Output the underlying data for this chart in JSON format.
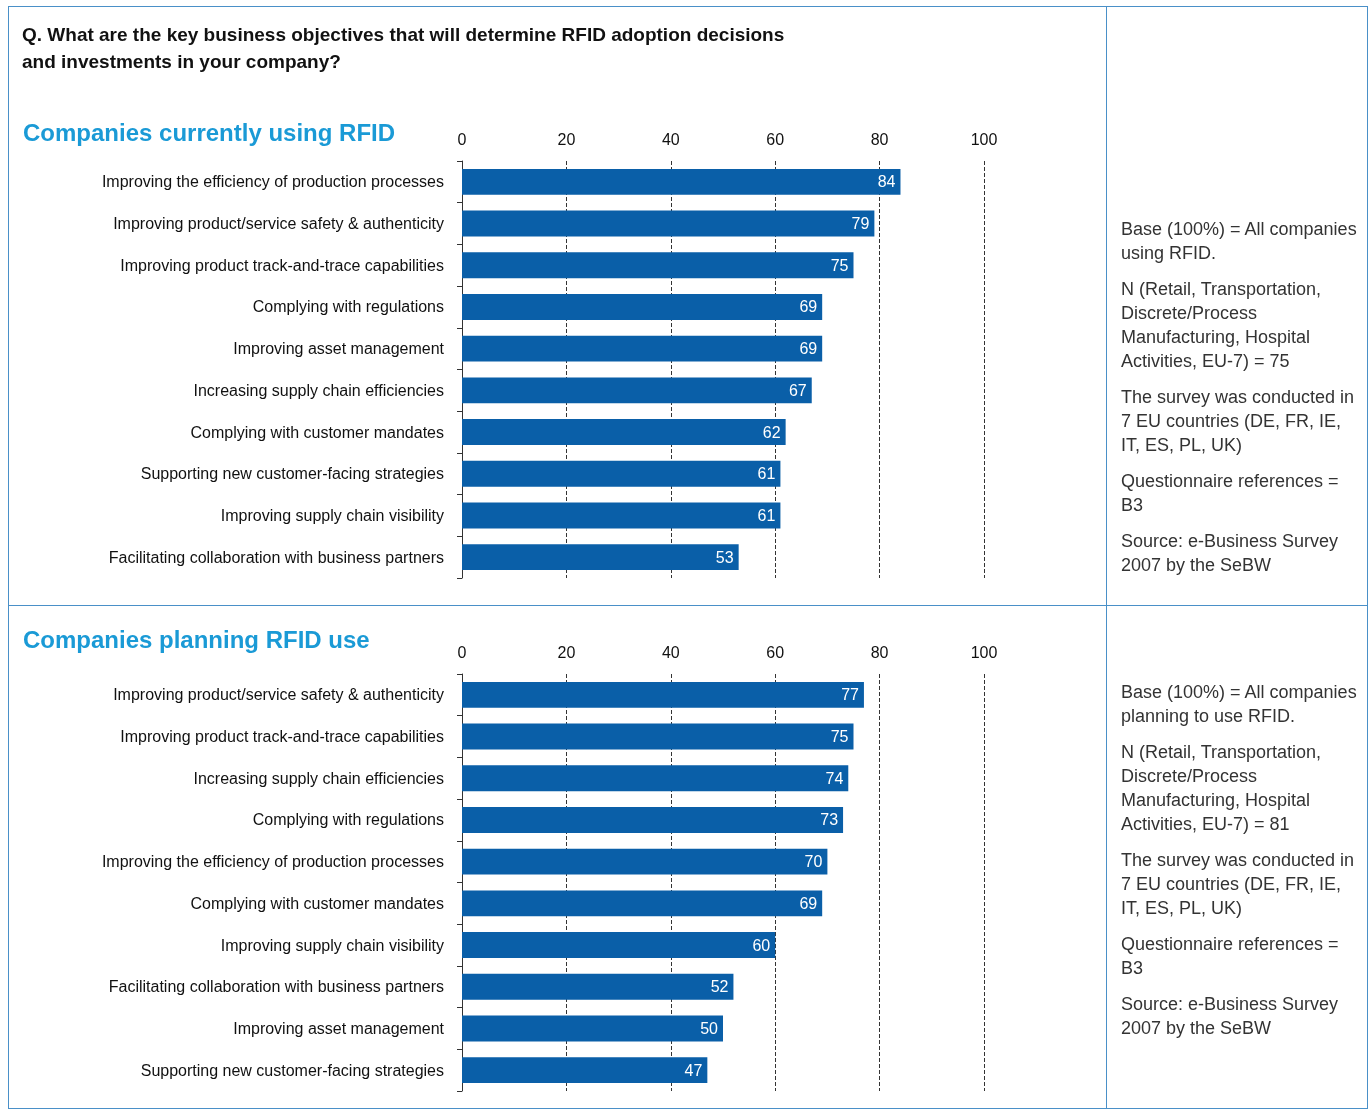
{
  "chart_data": [
    {
      "type": "bar",
      "orientation": "horizontal",
      "subtitle": "Q. What are the key business objectives that will determine RFID adoption decisions and investments in your company?",
      "title": "Companies currently using RFID",
      "categories": [
        "Improving the efficiency of production processes",
        "Improving product/service safety & authenticity",
        "Improving product track-and-trace capabilities",
        "Complying with regulations",
        "Improving asset management",
        "Increasing supply chain efficiencies",
        "Complying with customer mandates",
        "Supporting new customer-facing strategies",
        "Improving supply chain visibility",
        "Facilitating collaboration with business partners"
      ],
      "values": [
        84,
        79,
        75,
        69,
        69,
        67,
        62,
        61,
        61,
        53
      ],
      "color": "#0a5fa8",
      "data_labels": true,
      "xlim": [
        0,
        100
      ],
      "xticks": [
        0,
        20,
        40,
        60,
        80,
        100
      ],
      "grid": "x",
      "annotations": [
        "Base (100%) = All companies using RFID.",
        "N (Retail, Transportation, Discrete/Process Manufacturing, Hospital Activities, EU-7) = 75",
        "The survey was conducted in 7 EU countries (DE, FR, IE, IT, ES, PL, UK)",
        "Questionnaire references = B3",
        "Source: e-Business Survey 2007 by the SeBW"
      ]
    },
    {
      "type": "bar",
      "orientation": "horizontal",
      "title": "Companies planning RFID use",
      "categories": [
        "Improving product/service safety & authenticity",
        "Improving product track-and-trace capabilities",
        "Increasing supply chain efficiencies",
        "Complying with regulations",
        "Improving the efficiency of production processes",
        "Complying with customer mandates",
        "Improving supply chain visibility",
        "Facilitating collaboration with business partners",
        "Improving asset management",
        "Supporting new customer-facing strategies"
      ],
      "values": [
        77,
        75,
        74,
        73,
        70,
        69,
        60,
        52,
        50,
        47
      ],
      "color": "#0a5fa8",
      "data_labels": true,
      "xlim": [
        0,
        100
      ],
      "xticks": [
        0,
        20,
        40,
        60,
        80,
        100
      ],
      "grid": "x",
      "annotations": [
        "Base (100%) = All companies planning to use RFID.",
        "N (Retail, Transportation, Discrete/Process Manufacturing, Hospital Activities, EU-7) = 81",
        "The survey was conducted in 7 EU countries (DE, FR, IE, IT, ES, PL, UK)",
        "Questionnaire references = B3",
        "Source: e-Business Survey 2007 by the SeBW"
      ]
    }
  ]
}
